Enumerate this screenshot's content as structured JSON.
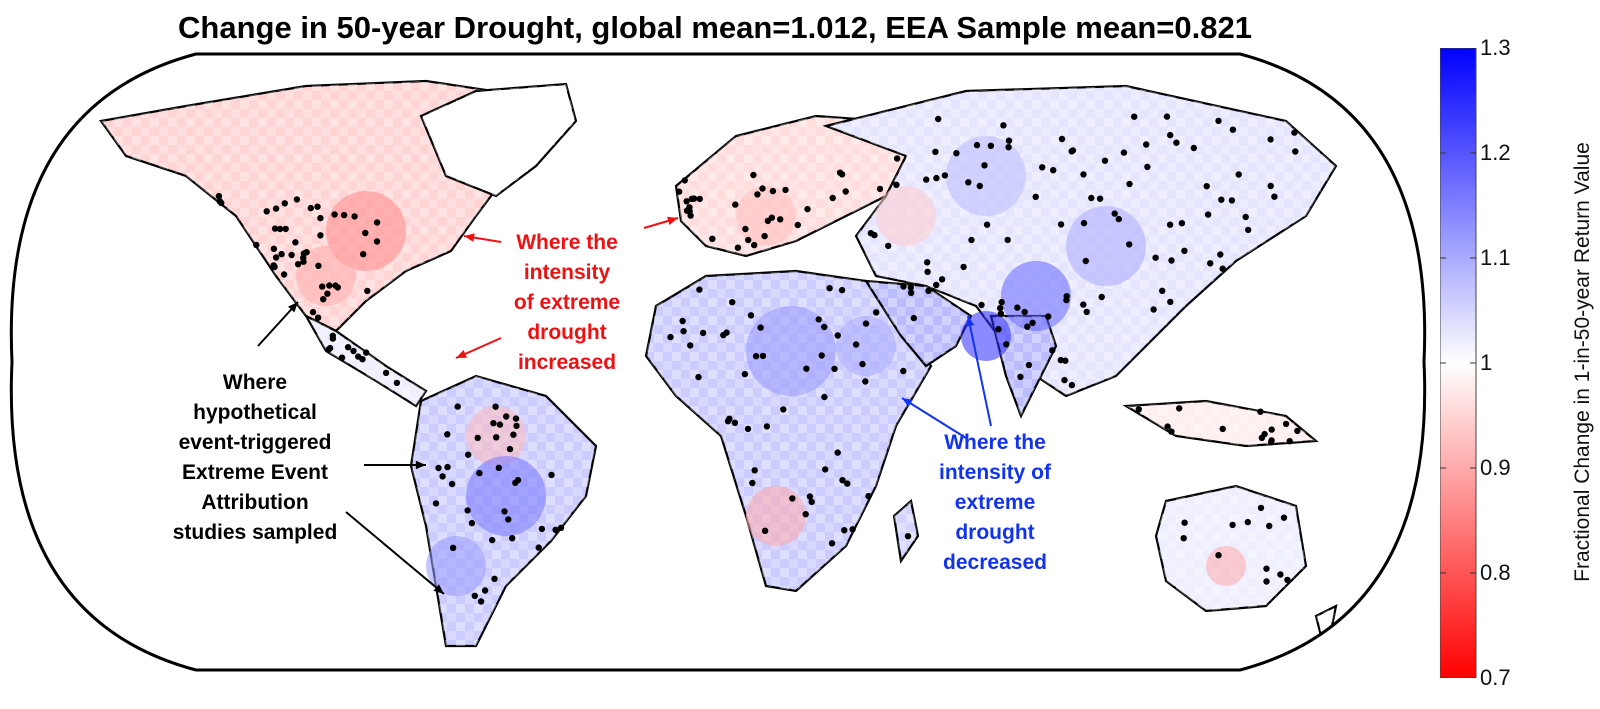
{
  "title": "Change in 50-year Drought, global mean=1.012, EEA Sample mean=0.821",
  "chart_data": {
    "type": "heatmap",
    "title": "Change in 50-year Drought, global mean=1.012, EEA Sample mean=0.821",
    "global_mean": 1.012,
    "eea_sample_mean": 0.821,
    "colorbar": {
      "label": "Fractional Change in 1-in-50-year Return Value",
      "min": 0.7,
      "max": 1.3,
      "low_color": "#ff0000",
      "mid_color": "#ffffff",
      "high_color": "#0000ff",
      "ticks": [
        "1.3",
        "1.2",
        "1.1",
        "1",
        "0.9",
        "0.8",
        "0.7"
      ]
    },
    "map_projection": "Robinson",
    "legend_placement": "right"
  },
  "annotations": {
    "increased": [
      "Where the",
      "intensity",
      "of extreme",
      "drought",
      "increased"
    ],
    "decreased": [
      "Where the",
      "intensity of",
      "extreme",
      "drought",
      "decreased"
    ],
    "sampled": [
      "Where",
      "hypothetical",
      "event-triggered",
      "Extreme Event",
      "Attribution",
      "studies sampled"
    ]
  },
  "colors": {
    "increased_text": "#ee1111",
    "decreased_text": "#1133ee",
    "sampled_text": "#000000",
    "land_outline": "#000000",
    "study_dot": "#000000"
  }
}
